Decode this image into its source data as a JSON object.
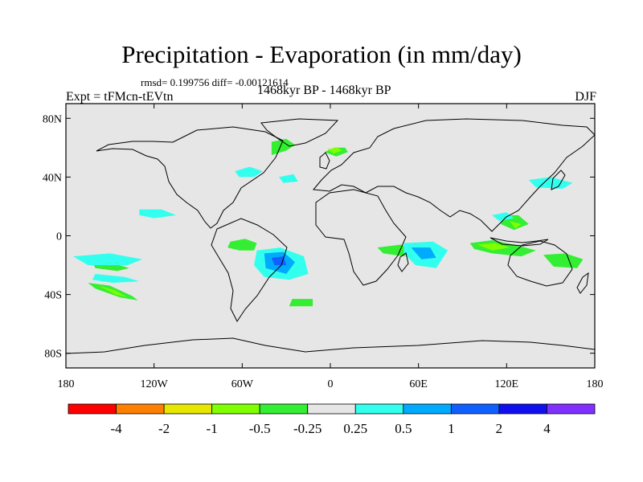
{
  "header": {
    "title": "Precipitation - Evaporation (in mm/day)",
    "stats": "rmsd= 0.199756 diff= -0.00121614",
    "experiment": "Expt = tFMcn-tEVtn",
    "period": "1468kyr BP - 1468kyr BP",
    "season": "DJF"
  },
  "map": {
    "lat_range": [
      -90,
      90
    ],
    "lon_range": [
      -180,
      180
    ],
    "y_ticks": [
      {
        "value": 80,
        "label": "80N"
      },
      {
        "value": 40,
        "label": "40N"
      },
      {
        "value": 0,
        "label": "0"
      },
      {
        "value": -40,
        "label": "40S"
      },
      {
        "value": -80,
        "label": "80S"
      }
    ],
    "x_ticks": [
      {
        "value": -180,
        "label": "180"
      },
      {
        "value": -120,
        "label": "120W"
      },
      {
        "value": -60,
        "label": "60W"
      },
      {
        "value": 0,
        "label": "0"
      },
      {
        "value": 60,
        "label": "60E"
      },
      {
        "value": 120,
        "label": "120E"
      },
      {
        "value": 180,
        "label": "180"
      }
    ],
    "background_color": "#e6e6e6"
  },
  "colorbar": {
    "colors": [
      "#ff0000",
      "#ff8000",
      "#e6e600",
      "#80ff00",
      "#33ee33",
      "#e6e6e6",
      "#33ffee",
      "#00aaff",
      "#1060ff",
      "#1010ee",
      "#8030ff"
    ],
    "labels": [
      "-4",
      "-2",
      "-1",
      "-0.5",
      "-0.25",
      "0.25",
      "0.5",
      "1",
      "2",
      "4"
    ]
  },
  "anomaly_regions": [
    {
      "level": "-0.25",
      "color": "#33ee33",
      "points": [
        [
          -40,
          55
        ],
        [
          -30,
          58
        ],
        [
          -24,
          62
        ],
        [
          -30,
          66
        ],
        [
          -40,
          64
        ]
      ]
    },
    {
      "level": "-0.25",
      "color": "#33ee33",
      "points": [
        [
          -4,
          57
        ],
        [
          3,
          60
        ],
        [
          10,
          60
        ],
        [
          12,
          57
        ],
        [
          4,
          54
        ]
      ]
    },
    {
      "level": "-0.5",
      "color": "#80ff00",
      "points": [
        [
          -2,
          59
        ],
        [
          5,
          60
        ],
        [
          8,
          58
        ],
        [
          2,
          56
        ]
      ]
    },
    {
      "level": "-0.25",
      "color": "#33ee33",
      "points": [
        [
          -165,
          -32
        ],
        [
          -150,
          -34
        ],
        [
          -135,
          -41
        ],
        [
          -131,
          -44
        ],
        [
          -143,
          -42
        ],
        [
          -160,
          -36
        ]
      ]
    },
    {
      "level": "-0.5",
      "color": "#80ff00",
      "points": [
        [
          -158,
          -34
        ],
        [
          -147,
          -37
        ],
        [
          -138,
          -42
        ],
        [
          -146,
          -40
        ]
      ]
    },
    {
      "level": "-0.25",
      "color": "#33ee33",
      "points": [
        [
          -163,
          -16
        ],
        [
          -150,
          -18
        ],
        [
          -137,
          -22
        ],
        [
          -145,
          -24
        ],
        [
          -160,
          -22
        ]
      ]
    },
    {
      "level": "-0.25",
      "color": "#33ee33",
      "points": [
        [
          -68,
          -4
        ],
        [
          -58,
          -2
        ],
        [
          -50,
          -5
        ],
        [
          -52,
          -10
        ],
        [
          -62,
          -10
        ],
        [
          -70,
          -8
        ]
      ]
    },
    {
      "level": "-0.25",
      "color": "#33ee33",
      "points": [
        [
          -26,
          -43
        ],
        [
          -12,
          -43
        ],
        [
          -12,
          -48
        ],
        [
          -28,
          -48
        ]
      ]
    },
    {
      "level": "-0.25",
      "color": "#33ee33",
      "points": [
        [
          32,
          -8
        ],
        [
          48,
          -6
        ],
        [
          56,
          -10
        ],
        [
          50,
          -14
        ],
        [
          36,
          -12
        ]
      ]
    },
    {
      "level": "-0.25",
      "color": "#33ee33",
      "points": [
        [
          95,
          -5
        ],
        [
          110,
          -3
        ],
        [
          125,
          -6
        ],
        [
          140,
          -10
        ],
        [
          130,
          -14
        ],
        [
          110,
          -12
        ],
        [
          98,
          -9
        ]
      ]
    },
    {
      "level": "-0.5",
      "color": "#80ff00",
      "points": [
        [
          100,
          -6
        ],
        [
          112,
          -5
        ],
        [
          122,
          -8
        ],
        [
          110,
          -10
        ]
      ]
    },
    {
      "level": "-0.25",
      "color": "#33ee33",
      "points": [
        [
          145,
          -13
        ],
        [
          160,
          -12
        ],
        [
          172,
          -16
        ],
        [
          168,
          -22
        ],
        [
          152,
          -21
        ]
      ]
    },
    {
      "level": "-0.25",
      "color": "#33ee33",
      "points": [
        [
          118,
          14
        ],
        [
          128,
          14
        ],
        [
          135,
          8
        ],
        [
          125,
          4
        ],
        [
          116,
          8
        ]
      ]
    },
    {
      "level": "-0.5",
      "color": "#80ff00",
      "points": [
        [
          122,
          10
        ],
        [
          130,
          8
        ],
        [
          126,
          5
        ]
      ]
    },
    {
      "level": "0.25",
      "color": "#33ffee",
      "points": [
        [
          -65,
          44
        ],
        [
          -55,
          47
        ],
        [
          -46,
          44
        ],
        [
          -52,
          40
        ],
        [
          -62,
          40
        ]
      ]
    },
    {
      "level": "0.25",
      "color": "#33ffee",
      "points": [
        [
          -130,
          18
        ],
        [
          -115,
          18
        ],
        [
          -105,
          14
        ],
        [
          -120,
          12
        ],
        [
          -130,
          14
        ]
      ]
    },
    {
      "level": "0.25",
      "color": "#33ffee",
      "points": [
        [
          -35,
          40
        ],
        [
          -25,
          42
        ],
        [
          -22,
          37
        ],
        [
          -32,
          36
        ]
      ]
    },
    {
      "level": "0.25",
      "color": "#33ffee",
      "points": [
        [
          135,
          38
        ],
        [
          150,
          40
        ],
        [
          165,
          36
        ],
        [
          158,
          32
        ],
        [
          140,
          33
        ]
      ]
    },
    {
      "level": "0.25",
      "color": "#33ffee",
      "points": [
        [
          -175,
          -14
        ],
        [
          -150,
          -12
        ],
        [
          -128,
          -16
        ],
        [
          -138,
          -20
        ],
        [
          -165,
          -20
        ]
      ]
    },
    {
      "level": "0.25",
      "color": "#33ffee",
      "points": [
        [
          -160,
          -26
        ],
        [
          -140,
          -28
        ],
        [
          -130,
          -31
        ],
        [
          -148,
          -32
        ],
        [
          -162,
          -30
        ]
      ]
    },
    {
      "level": "0.25",
      "color": "#33ffee",
      "points": [
        [
          -50,
          -10
        ],
        [
          -34,
          -8
        ],
        [
          -18,
          -14
        ],
        [
          -15,
          -26
        ],
        [
          -28,
          -30
        ],
        [
          -45,
          -28
        ],
        [
          -52,
          -20
        ]
      ]
    },
    {
      "level": "0.5",
      "color": "#00aaff",
      "points": [
        [
          -45,
          -12
        ],
        [
          -32,
          -11
        ],
        [
          -24,
          -18
        ],
        [
          -30,
          -26
        ],
        [
          -44,
          -22
        ]
      ]
    },
    {
      "level": "1",
      "color": "#1060ff",
      "points": [
        [
          -40,
          -15
        ],
        [
          -32,
          -14
        ],
        [
          -30,
          -20
        ],
        [
          -38,
          -20
        ]
      ]
    },
    {
      "level": "0.25",
      "color": "#33ffee",
      "points": [
        [
          50,
          -5
        ],
        [
          70,
          -4
        ],
        [
          80,
          -10
        ],
        [
          72,
          -22
        ],
        [
          58,
          -20
        ],
        [
          50,
          -12
        ]
      ]
    },
    {
      "level": "0.5",
      "color": "#00aaff",
      "points": [
        [
          55,
          -8
        ],
        [
          68,
          -8
        ],
        [
          72,
          -15
        ],
        [
          62,
          -16
        ]
      ]
    },
    {
      "level": "0.25",
      "color": "#33ffee",
      "points": [
        [
          110,
          14
        ],
        [
          120,
          16
        ],
        [
          125,
          12
        ],
        [
          115,
          10
        ]
      ]
    }
  ]
}
